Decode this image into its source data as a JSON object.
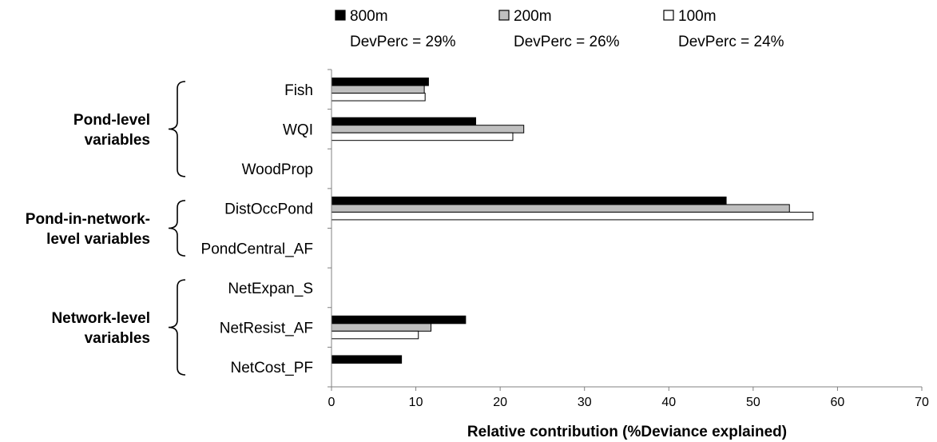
{
  "chart_data": {
    "type": "bar",
    "orientation": "horizontal",
    "xlabel": "Relative contribution (%Deviance explained)",
    "xlim": [
      0,
      70
    ],
    "xticks": [
      0,
      10,
      20,
      30,
      40,
      50,
      60,
      70
    ],
    "grid": false,
    "categories": [
      "Fish",
      "WQI",
      "WoodProp",
      "DistOccPond",
      "PondCentral_AF",
      "NetExpan_S",
      "NetResist_AF",
      "NetCost_PF"
    ],
    "series": [
      {
        "name": "800m",
        "subtitle": "DevPerc = 29%",
        "color": "#000000",
        "values": [
          11.5,
          17.1,
          null,
          46.8,
          null,
          null,
          15.9,
          8.3
        ]
      },
      {
        "name": "200m",
        "subtitle": "DevPerc = 26%",
        "color": "#bfbfbf",
        "values": [
          11.0,
          22.8,
          null,
          54.3,
          null,
          null,
          11.8,
          null
        ]
      },
      {
        "name": "100m",
        "subtitle": "DevPerc = 24%",
        "color": "#ffffff",
        "values": [
          11.1,
          21.5,
          null,
          57.1,
          null,
          null,
          10.3,
          null
        ]
      }
    ],
    "groups": [
      {
        "lines": [
          "Pond-level",
          "variables"
        ],
        "categories": [
          "Fish",
          "WQI",
          "WoodProp"
        ]
      },
      {
        "lines": [
          "Pond-in-network-",
          "level variables"
        ],
        "categories": [
          "DistOccPond",
          "PondCentral_AF"
        ]
      },
      {
        "lines": [
          "Network-level",
          "variables"
        ],
        "categories": [
          "NetExpan_S",
          "NetResist_AF",
          "NetCost_PF"
        ]
      }
    ],
    "legend_position": "top"
  }
}
